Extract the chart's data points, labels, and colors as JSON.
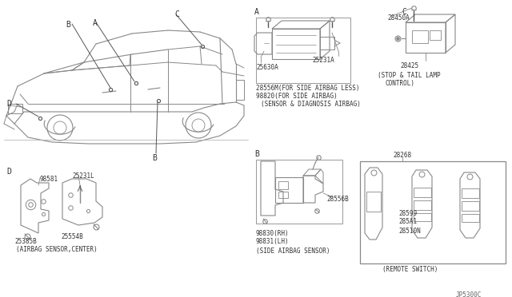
{
  "bg_color": "#ffffff",
  "line_color": "#888888",
  "dark_color": "#555555",
  "text_color": "#333333",
  "diagram_code": "JP5300C",
  "sections": {
    "A_label": "A",
    "A_parts_left": "25630A",
    "A_parts_right": "25231A",
    "A_note1": "28556M(FOR SIDE AIRBAG LESS)",
    "A_note2": "98820(FOR SIDE AIRBAG)",
    "A_caption": "(SENSOR & DIAGNOSIS AIRBAG)",
    "B_label": "B",
    "B_part": "28556B",
    "B_note1": "98830(RH)",
    "B_note2": "98831(LH)",
    "B_caption": "(SIDE AIRBAG SENSOR)",
    "C_label": "C",
    "C_part_top": "28450A",
    "C_part_bot": "28425",
    "C_caption1": "(STOP & TAIL LAMP",
    "C_caption2": "CONTROL)",
    "D_label": "D",
    "D_part1": "98581",
    "D_part2": "25231L",
    "D_part3": "25385B",
    "D_part4": "25554B",
    "D_caption": "(AIRBAG SENSOR,CENTER)",
    "remote_label": "28268",
    "remote_p1": "28599",
    "remote_p2": "285A1",
    "remote_p3": "28510N",
    "remote_caption": "(REMOTE SWITCH)"
  }
}
